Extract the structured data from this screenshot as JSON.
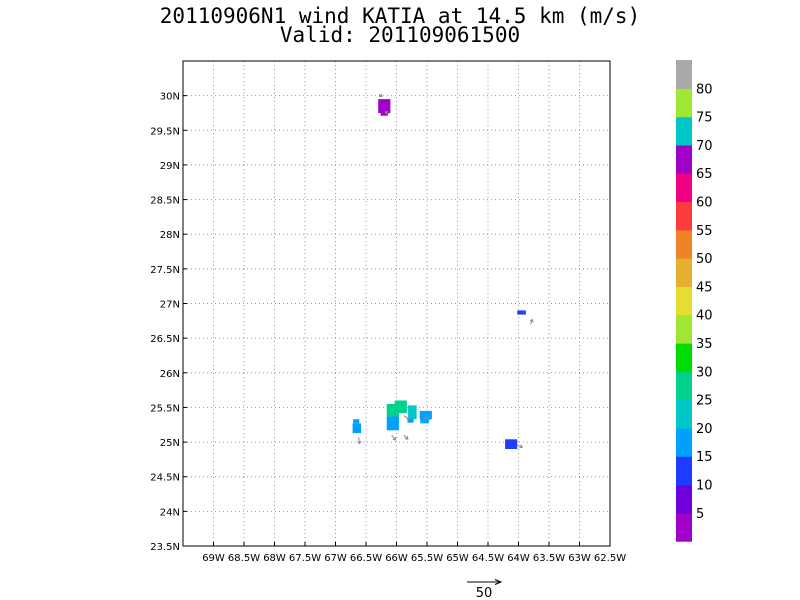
{
  "chart_data": {
    "type": "heatmap",
    "title": "20110906N1 wind KATIA at 14.5 km (m/s)",
    "subtitle": "Valid: 201109061500",
    "x_range": [
      -69.5,
      -62.5
    ],
    "y_range": [
      23.5,
      30.5
    ],
    "x_ticks": [
      {
        "value": -69.0,
        "label": "69W"
      },
      {
        "value": -68.5,
        "label": "68.5W"
      },
      {
        "value": -68.0,
        "label": "68W"
      },
      {
        "value": -67.5,
        "label": "67.5W"
      },
      {
        "value": -67.0,
        "label": "67W"
      },
      {
        "value": -66.5,
        "label": "66.5W"
      },
      {
        "value": -66.0,
        "label": "66W"
      },
      {
        "value": -65.5,
        "label": "65.5W"
      },
      {
        "value": -65.0,
        "label": "65W"
      },
      {
        "value": -64.5,
        "label": "64.5W"
      },
      {
        "value": -64.0,
        "label": "64W"
      },
      {
        "value": -63.5,
        "label": "63.5W"
      },
      {
        "value": -63.0,
        "label": "63W"
      },
      {
        "value": -62.5,
        "label": "62.5W"
      }
    ],
    "y_ticks": [
      {
        "value": 23.5,
        "label": "23.5N"
      },
      {
        "value": 24.0,
        "label": "24N"
      },
      {
        "value": 24.5,
        "label": "24.5N"
      },
      {
        "value": 25.0,
        "label": "25N"
      },
      {
        "value": 25.5,
        "label": "25.5N"
      },
      {
        "value": 26.0,
        "label": "26N"
      },
      {
        "value": 26.5,
        "label": "26.5N"
      },
      {
        "value": 27.0,
        "label": "27N"
      },
      {
        "value": 27.5,
        "label": "27.5N"
      },
      {
        "value": 28.0,
        "label": "28N"
      },
      {
        "value": 28.5,
        "label": "28.5N"
      },
      {
        "value": 29.0,
        "label": "29N"
      },
      {
        "value": 29.5,
        "label": "29.5N"
      },
      {
        "value": 30.0,
        "label": "30N"
      }
    ],
    "grid": true,
    "colorbar": {
      "colors": [
        "#a000c8",
        "#6e00dc",
        "#1e3cff",
        "#00a0ff",
        "#00c8c8",
        "#00d28c",
        "#00dc00",
        "#a0e632",
        "#e6dc32",
        "#e6af2d",
        "#f08228",
        "#fa3c3c",
        "#f00082",
        "#a000c8",
        "#00c8c8",
        "#a0e632",
        "#aaaaaa"
      ],
      "labels": [
        "5",
        "10",
        "15",
        "20",
        "25",
        "30",
        "35",
        "40",
        "45",
        "50",
        "55",
        "60",
        "65",
        "70",
        "75",
        "80"
      ]
    },
    "cells": [
      {
        "lon": -66.2,
        "lat": 29.85,
        "w": 0.2,
        "h": 0.2,
        "value": 68
      },
      {
        "lon": -66.2,
        "lat": 29.75,
        "w": 0.12,
        "h": 0.08,
        "value": 66
      },
      {
        "lon": -63.95,
        "lat": 26.87,
        "w": 0.14,
        "h": 0.06,
        "value": 13
      },
      {
        "lon": -64.12,
        "lat": 24.97,
        "w": 0.2,
        "h": 0.14,
        "value": 13
      },
      {
        "lon": -66.65,
        "lat": 25.2,
        "w": 0.14,
        "h": 0.14,
        "value": 18
      },
      {
        "lon": -66.66,
        "lat": 25.3,
        "w": 0.1,
        "h": 0.06,
        "value": 18
      },
      {
        "lon": -66.06,
        "lat": 25.27,
        "w": 0.2,
        "h": 0.2,
        "value": 17
      },
      {
        "lon": -66.06,
        "lat": 25.46,
        "w": 0.2,
        "h": 0.18,
        "value": 27
      },
      {
        "lon": -65.93,
        "lat": 25.51,
        "w": 0.2,
        "h": 0.18,
        "value": 28
      },
      {
        "lon": -65.74,
        "lat": 25.43,
        "w": 0.14,
        "h": 0.2,
        "value": 22
      },
      {
        "lon": -65.77,
        "lat": 25.31,
        "w": 0.1,
        "h": 0.06,
        "value": 16
      },
      {
        "lon": -65.52,
        "lat": 25.39,
        "w": 0.2,
        "h": 0.12,
        "value": 19
      },
      {
        "lon": -65.54,
        "lat": 25.31,
        "w": 0.14,
        "h": 0.08,
        "value": 17
      }
    ],
    "vectors": [
      {
        "lon": -66.28,
        "lat": 30.02,
        "u": 3,
        "v": -3
      },
      {
        "lon": -66.12,
        "lat": 29.74,
        "u": -5,
        "v": 2
      },
      {
        "lon": -63.8,
        "lat": 26.7,
        "u": 2,
        "v": 6
      },
      {
        "lon": -64.03,
        "lat": 24.96,
        "u": 7,
        "v": -3
      },
      {
        "lon": -66.62,
        "lat": 25.07,
        "u": 1,
        "v": -8
      },
      {
        "lon": -66.08,
        "lat": 25.1,
        "u": 5,
        "v": -6
      },
      {
        "lon": -65.88,
        "lat": 25.1,
        "u": 5,
        "v": -5
      },
      {
        "lon": -65.88,
        "lat": 25.38,
        "u": 7,
        "v": -4
      },
      {
        "lon": -65.45,
        "lat": 25.32,
        "u": -7,
        "v": 3
      }
    ],
    "reference_vector": {
      "value": 50,
      "label": "50"
    }
  }
}
